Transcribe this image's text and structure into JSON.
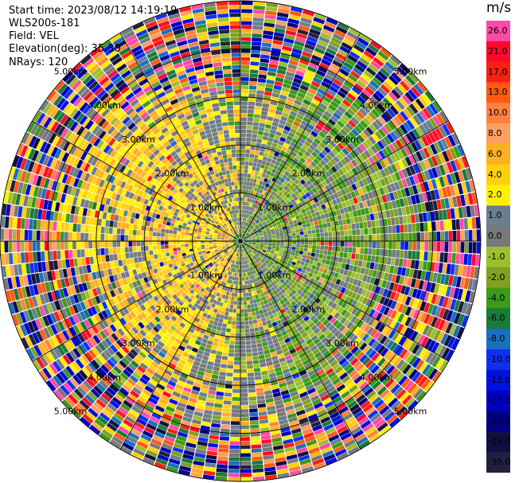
{
  "header": {
    "start_time": "Start time: 2023/08/12 14:19:19",
    "instrument": "WLS200s-181",
    "field": "Field: VEL",
    "elevation": "Elevation(deg): 35.30",
    "nrays": "NRays: 120"
  },
  "colorbar": {
    "unit": "m/s",
    "levels": [
      {
        "label": "26.0",
        "color": "#ff4aa8"
      },
      {
        "label": "21.0",
        "color": "#ff0a2a"
      },
      {
        "label": "17.0",
        "color": "#ff1f10"
      },
      {
        "label": "13.0",
        "color": "#ff5a10"
      },
      {
        "label": "10.0",
        "color": "#ff8040"
      },
      {
        "label": "8.0",
        "color": "#ffa060"
      },
      {
        "label": "6.0",
        "color": "#ffb020"
      },
      {
        "label": "4.0",
        "color": "#ffd010"
      },
      {
        "label": "2.0",
        "color": "#fff000"
      },
      {
        "label": "1.0",
        "color": "#6b7f8f"
      },
      {
        "label": "0.0",
        "color": "#787878"
      },
      {
        "label": "-1.0",
        "color": "#9cbf30"
      },
      {
        "label": "-2.0",
        "color": "#80a020"
      },
      {
        "label": "-4.0",
        "color": "#3a9a1a"
      },
      {
        "label": "-6.0",
        "color": "#1a7a3a"
      },
      {
        "label": "-8.0",
        "color": "#1a70c0"
      },
      {
        "label": "-10.0",
        "color": "#1030f0"
      },
      {
        "label": "-13.0",
        "color": "#0010e0"
      },
      {
        "label": "-17.0",
        "color": "#0000c0"
      },
      {
        "label": "-21.0",
        "color": "#000080"
      },
      {
        "label": "-26.0",
        "color": "#101040"
      },
      {
        "label": "-30.0",
        "color": "#202040"
      }
    ]
  },
  "chart_data": {
    "type": "heatmap",
    "projection": "polar PPI scan",
    "nrays": 120,
    "range_ring_labels": [
      "1.00km",
      "2.00km",
      "3.00km",
      "4.00km",
      "5.00km"
    ],
    "ring_label_texts": [
      "1.00km",
      "1.00km",
      "1.00km",
      "1.00km",
      "2.00km",
      "2.00km",
      "2.00km",
      "2.00km",
      "3.00km",
      "3.00km",
      "3.00km",
      "3.00km",
      "4.00km",
      "4.00km",
      "4.00km",
      "4.00km",
      "5.00km",
      "5.00km",
      "5.00km",
      "5.00km"
    ],
    "field": "VEL",
    "unit": "m/s",
    "color_range": [
      -30.0,
      26.0
    ],
    "grid": true
  }
}
